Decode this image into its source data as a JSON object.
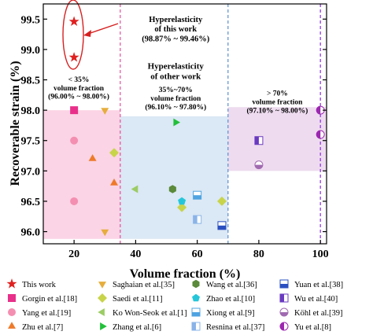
{
  "chart_data": {
    "type": "scatter",
    "title": "",
    "xlabel": "Volume fraction (%)",
    "ylabel": "Recoverable strain (%)",
    "xlim": [
      10,
      102
    ],
    "ylim": [
      95.8,
      99.75
    ],
    "x_ticks": [
      20,
      40,
      60,
      80,
      100
    ],
    "y_ticks": [
      96.0,
      96.5,
      97.0,
      97.5,
      98.0,
      98.5,
      99.0,
      99.5
    ],
    "x_tick_labels": [
      "20",
      "40",
      "60",
      "80",
      "100"
    ],
    "y_tick_labels": [
      "96.0",
      "96.5",
      "97.0",
      "97.5",
      "98.0",
      "98.5",
      "99.0",
      "99.5"
    ],
    "grid": false,
    "legend_position": "bottom",
    "vlines": [
      {
        "x": 35,
        "color": "#e0509a"
      },
      {
        "x": 70,
        "color": "#5a8fd0"
      },
      {
        "x": 100,
        "color": "#8a2be2"
      }
    ],
    "regions": [
      {
        "x": [
          10,
          35
        ],
        "y": [
          95.88,
          98.0
        ],
        "color": "#f9c6dc"
      },
      {
        "x": [
          35,
          70
        ],
        "y": [
          95.88,
          97.9
        ],
        "color": "#cfe0f1"
      },
      {
        "x": [
          70,
          102
        ],
        "y": [
          97.0,
          98.05
        ],
        "color": "#e8cfe9"
      }
    ],
    "annotations": [
      {
        "lines": [
          "Hyperelasticity",
          "of this work",
          "(98.87% ~ 99.46%)"
        ],
        "x": 53,
        "y": 99.45,
        "size": 10.5
      },
      {
        "lines": [
          "Hyperelasticity",
          "of other work"
        ],
        "x": 53,
        "y": 98.68,
        "size": 11
      },
      {
        "lines": [
          "35%~70%",
          "volume fraction",
          "(96.10% ~ 97.80%)"
        ],
        "x": 53,
        "y": 98.3,
        "size": 9.5
      },
      {
        "lines": [
          "< 35%",
          "volume fraction",
          "(96.00% ~ 98.00%)"
        ],
        "x": 21.5,
        "y": 98.47,
        "size": 9.5
      },
      {
        "lines": [
          "> 70%",
          "volume fraction",
          "(97.10% ~ 98.00%)"
        ],
        "x": 86,
        "y": 98.24,
        "size": 9.5
      }
    ],
    "series": [
      {
        "name": "This work",
        "marker": "star",
        "color": "#e02020",
        "x": [
          20,
          20
        ],
        "y": [
          99.46,
          98.87
        ]
      },
      {
        "name": "Gorgin et al.[18]",
        "marker": "square",
        "color": "#e8308a",
        "x": [
          20
        ],
        "y": [
          98.0
        ]
      },
      {
        "name": "Yang et al.[19]",
        "marker": "circle",
        "color": "#f48fb1",
        "x": [
          20,
          20
        ],
        "y": [
          97.5,
          96.5
        ]
      },
      {
        "name": "Zhu et al.[7]",
        "marker": "triangle-up",
        "color": "#ee7a2a",
        "x": [
          26,
          33
        ],
        "y": [
          97.2,
          96.8
        ]
      },
      {
        "name": "Saghaian et al.[35]",
        "marker": "triangle-down",
        "color": "#e6ad3c",
        "x": [
          30,
          30
        ],
        "y": [
          98.0,
          96.0
        ]
      },
      {
        "name": "Saedi et al.[11]",
        "marker": "diamond",
        "color": "#c8d44a",
        "x": [
          33,
          55,
          68
        ],
        "y": [
          97.3,
          96.4,
          96.5
        ]
      },
      {
        "name": "Ko Won-Seok et al.[1]",
        "marker": "triangle-left",
        "color": "#9ccc65",
        "x": [
          40
        ],
        "y": [
          96.7
        ]
      },
      {
        "name": "Zhang et al.[6]",
        "marker": "triangle-right",
        "color": "#22c03a",
        "x": [
          53
        ],
        "y": [
          97.8
        ]
      },
      {
        "name": "Wang et al.[36]",
        "marker": "hexagon",
        "color": "#5a8a3a",
        "x": [
          52
        ],
        "y": [
          96.7
        ]
      },
      {
        "name": "Zhao et al.[10]",
        "marker": "pentagon",
        "color": "#26c6da",
        "x": [
          55
        ],
        "y": [
          96.5
        ]
      },
      {
        "name": "Xiong et al.[9]",
        "marker": "square-bottom-half",
        "color": "#4fa3e0",
        "x": [
          60
        ],
        "y": [
          96.6
        ]
      },
      {
        "name": "Resnina et al.[37]",
        "marker": "square-left-half",
        "color": "#8ab4e8",
        "x": [
          60
        ],
        "y": [
          96.2
        ]
      },
      {
        "name": "Yuan et al.[38]",
        "marker": "square-bottom-half",
        "color": "#2a4fc0",
        "x": [
          68
        ],
        "y": [
          96.1
        ]
      },
      {
        "name": "Wu et al.[40]",
        "marker": "square-left-half",
        "color": "#6a3ac0",
        "x": [
          80
        ],
        "y": [
          97.5
        ]
      },
      {
        "name": "Köhl et al.[39]",
        "marker": "circle-bottom-half",
        "color": "#a06ab0",
        "x": [
          80
        ],
        "y": [
          97.1
        ]
      },
      {
        "name": "Yu et al.[8]",
        "marker": "circle-left-half",
        "color": "#9c27b0",
        "x": [
          100,
          100
        ],
        "y": [
          98.0,
          97.6
        ]
      }
    ]
  }
}
